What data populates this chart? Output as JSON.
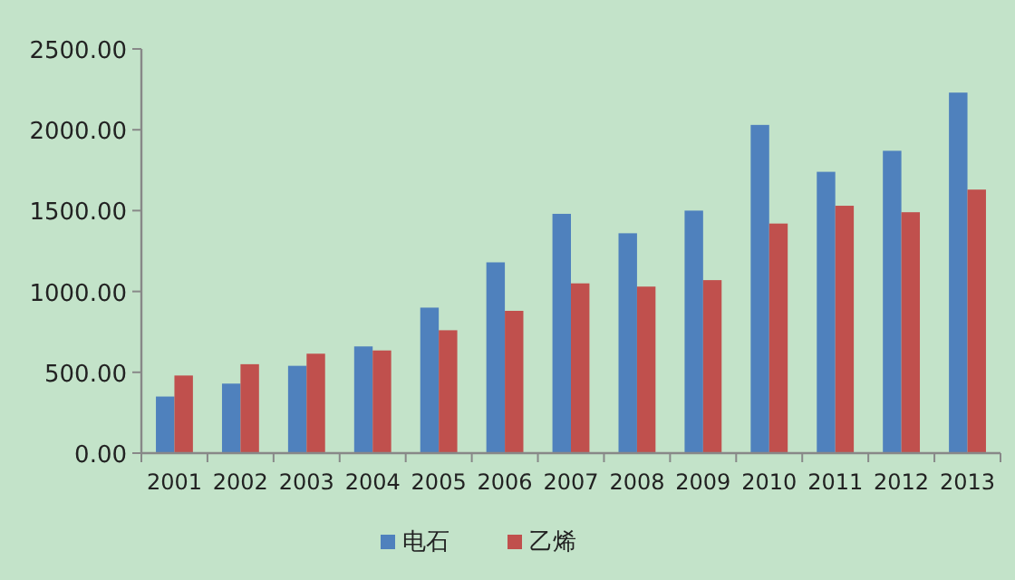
{
  "chart_data": {
    "type": "bar",
    "categories": [
      "2001",
      "2002",
      "2003",
      "2004",
      "2005",
      "2006",
      "2007",
      "2008",
      "2009",
      "2010",
      "2011",
      "2012",
      "2013"
    ],
    "series": [
      {
        "name": "电石",
        "color": "#4f81bd",
        "values": [
          350,
          430,
          540,
          660,
          900,
          1180,
          1480,
          1360,
          1500,
          2030,
          1740,
          1870,
          2230
        ]
      },
      {
        "name": "乙烯",
        "color": "#c0504d",
        "values": [
          480,
          550,
          615,
          635,
          760,
          880,
          1050,
          1030,
          1070,
          1420,
          1530,
          1490,
          1630
        ]
      }
    ],
    "ylim": [
      0,
      2500
    ],
    "yticks": [
      {
        "value": 0,
        "label": "0.00"
      },
      {
        "value": 500,
        "label": "500.00"
      },
      {
        "value": 1000,
        "label": "1000.00"
      },
      {
        "value": 1500,
        "label": "1500.00"
      },
      {
        "value": 2000,
        "label": "2000.00"
      },
      {
        "value": 2500,
        "label": "2500.00"
      }
    ],
    "grid": false,
    "legend": "bottom"
  }
}
